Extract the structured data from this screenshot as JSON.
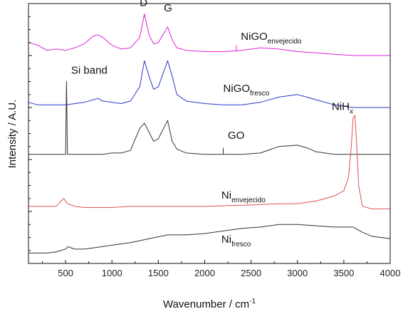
{
  "chart_data": {
    "type": "line",
    "xlabel": "Wavenumber / cm",
    "xlabel_superscript": "-1",
    "ylabel": "Intensity / A.U.",
    "xlim": [
      100,
      4000
    ],
    "ylim": [
      0,
      100
    ],
    "x_ticks": [
      500,
      1000,
      1500,
      2000,
      2500,
      3000,
      3500,
      4000
    ],
    "y_ticks_labeled": false,
    "grid": false,
    "series": [
      {
        "label_main": "NiGO",
        "label_sub": "envejecido",
        "color": "#e020d8",
        "points": [
          [
            100,
            85
          ],
          [
            200,
            84
          ],
          [
            300,
            82
          ],
          [
            400,
            82.5
          ],
          [
            500,
            82
          ],
          [
            600,
            83
          ],
          [
            700,
            84.5
          ],
          [
            800,
            87.5
          ],
          [
            850,
            88
          ],
          [
            900,
            87
          ],
          [
            1000,
            84
          ],
          [
            1100,
            82.5
          ],
          [
            1200,
            83
          ],
          [
            1300,
            87
          ],
          [
            1350,
            96
          ],
          [
            1400,
            88
          ],
          [
            1450,
            84.5
          ],
          [
            1500,
            85
          ],
          [
            1600,
            91
          ],
          [
            1650,
            86
          ],
          [
            1700,
            83
          ],
          [
            1800,
            82
          ],
          [
            2000,
            81.5
          ],
          [
            2200,
            81.5
          ],
          [
            2400,
            82
          ],
          [
            2600,
            83
          ],
          [
            2800,
            82.5
          ],
          [
            3000,
            81.5
          ],
          [
            3200,
            81
          ],
          [
            3400,
            80.5
          ],
          [
            3600,
            80
          ],
          [
            3800,
            80
          ],
          [
            4000,
            80
          ]
        ]
      },
      {
        "label_main": "NiGO",
        "label_sub": "fresco",
        "color": "#2838c8",
        "points": [
          [
            100,
            62
          ],
          [
            200,
            61
          ],
          [
            300,
            61
          ],
          [
            400,
            61
          ],
          [
            500,
            61
          ],
          [
            600,
            61.5
          ],
          [
            700,
            62
          ],
          [
            800,
            63
          ],
          [
            850,
            63.5
          ],
          [
            900,
            62.5
          ],
          [
            1000,
            62
          ],
          [
            1100,
            61.5
          ],
          [
            1200,
            62.5
          ],
          [
            1300,
            68
          ],
          [
            1350,
            78
          ],
          [
            1400,
            72
          ],
          [
            1450,
            67
          ],
          [
            1500,
            68
          ],
          [
            1600,
            78
          ],
          [
            1650,
            72
          ],
          [
            1700,
            65
          ],
          [
            1800,
            62.5
          ],
          [
            2000,
            61.5
          ],
          [
            2200,
            61
          ],
          [
            2400,
            61
          ],
          [
            2600,
            62
          ],
          [
            2800,
            64
          ],
          [
            3000,
            65
          ],
          [
            3100,
            64
          ],
          [
            3200,
            63
          ],
          [
            3400,
            61
          ],
          [
            3600,
            60
          ],
          [
            3800,
            60
          ],
          [
            4000,
            60
          ]
        ]
      },
      {
        "label_main": "GO",
        "label_sub": "",
        "color": "#333333",
        "points": [
          [
            100,
            42
          ],
          [
            200,
            42
          ],
          [
            300,
            42
          ],
          [
            400,
            42
          ],
          [
            480,
            42
          ],
          [
            500,
            42
          ],
          [
            510,
            70
          ],
          [
            520,
            42
          ],
          [
            600,
            42
          ],
          [
            700,
            42
          ],
          [
            800,
            42
          ],
          [
            900,
            42
          ],
          [
            1000,
            42.5
          ],
          [
            1100,
            42.5
          ],
          [
            1200,
            43.5
          ],
          [
            1300,
            52
          ],
          [
            1350,
            54
          ],
          [
            1400,
            50.5
          ],
          [
            1450,
            47
          ],
          [
            1500,
            48
          ],
          [
            1600,
            55
          ],
          [
            1650,
            47
          ],
          [
            1700,
            44
          ],
          [
            1800,
            42.5
          ],
          [
            2000,
            42
          ],
          [
            2200,
            42
          ],
          [
            2400,
            42
          ],
          [
            2600,
            42.5
          ],
          [
            2800,
            45
          ],
          [
            3000,
            45.5
          ],
          [
            3100,
            44.5
          ],
          [
            3200,
            43
          ],
          [
            3400,
            42
          ],
          [
            3600,
            42
          ],
          [
            3800,
            42
          ],
          [
            4000,
            42
          ]
        ]
      },
      {
        "label_main": "Ni",
        "label_sub": "envejecido",
        "color": "#e05050",
        "points": [
          [
            100,
            22
          ],
          [
            300,
            22
          ],
          [
            400,
            22
          ],
          [
            450,
            24
          ],
          [
            480,
            25
          ],
          [
            520,
            23
          ],
          [
            600,
            22
          ],
          [
            700,
            21.5
          ],
          [
            800,
            21.5
          ],
          [
            1000,
            21.5
          ],
          [
            1200,
            22
          ],
          [
            1500,
            22
          ],
          [
            1800,
            22
          ],
          [
            2000,
            22
          ],
          [
            2500,
            22.5
          ],
          [
            2800,
            23
          ],
          [
            3000,
            23
          ],
          [
            3200,
            24
          ],
          [
            3400,
            26
          ],
          [
            3500,
            28
          ],
          [
            3550,
            33
          ],
          [
            3580,
            45
          ],
          [
            3600,
            56
          ],
          [
            3620,
            57
          ],
          [
            3640,
            45
          ],
          [
            3660,
            30
          ],
          [
            3700,
            22
          ],
          [
            3800,
            21
          ],
          [
            4000,
            21
          ]
        ]
      },
      {
        "label_main": "Ni",
        "label_sub": "fresco",
        "color": "#333333",
        "points": [
          [
            100,
            4
          ],
          [
            200,
            4
          ],
          [
            300,
            4
          ],
          [
            400,
            4.5
          ],
          [
            500,
            5.5
          ],
          [
            530,
            6.5
          ],
          [
            560,
            6
          ],
          [
            600,
            5.5
          ],
          [
            700,
            5.5
          ],
          [
            800,
            6
          ],
          [
            1000,
            7
          ],
          [
            1200,
            8
          ],
          [
            1400,
            9.5
          ],
          [
            1600,
            11
          ],
          [
            1800,
            11
          ],
          [
            2000,
            11.5
          ],
          [
            2200,
            12.5
          ],
          [
            2400,
            13.5
          ],
          [
            2600,
            14
          ],
          [
            2800,
            15
          ],
          [
            3000,
            15
          ],
          [
            3200,
            14.5
          ],
          [
            3400,
            14
          ],
          [
            3600,
            14
          ],
          [
            3700,
            12
          ],
          [
            3800,
            10.5
          ],
          [
            4000,
            9.5
          ]
        ]
      }
    ],
    "annotations": [
      {
        "text": "D",
        "sub": "",
        "x": 1300,
        "y": 99
      },
      {
        "text": "G",
        "sub": "",
        "x": 1560,
        "y": 97
      },
      {
        "text": "Si band",
        "sub": "",
        "x": 560,
        "y": 73
      },
      {
        "text": "NiH",
        "sub": "x",
        "x": 3370,
        "y": 59
      }
    ],
    "series_labels": [
      {
        "series": 0,
        "x": 2390,
        "y": 86
      },
      {
        "series": 1,
        "x": 2200,
        "y": 66
      },
      {
        "series": 2,
        "x": 2250,
        "y": 48
      },
      {
        "series": 3,
        "x": 2180,
        "y": 25
      },
      {
        "series": 4,
        "x": 2180,
        "y": 8
      }
    ]
  }
}
